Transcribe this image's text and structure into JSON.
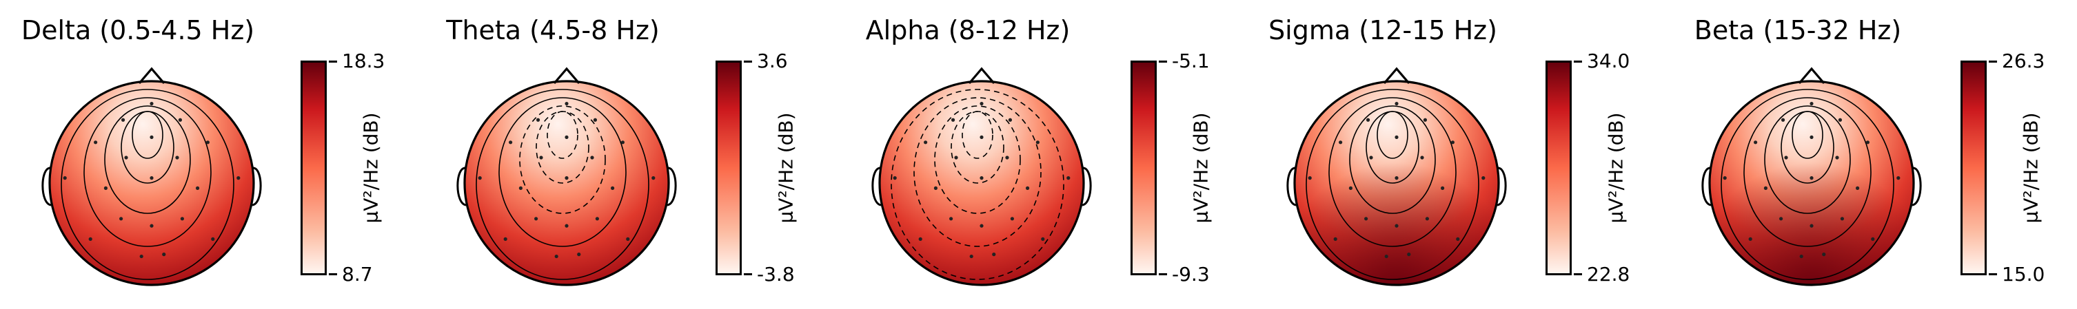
{
  "chart_data": [
    {
      "type": "heatmap",
      "subtype": "topomap",
      "title": "Delta (0.5-4.5 Hz)",
      "colorbar_label": "µV²/Hz (dB)",
      "colormap": "Reds",
      "vmin": 8.7,
      "vmax": 18.3,
      "vmin_label": "8.7",
      "vmax_label": "18.3",
      "low_region": "frontal-midline",
      "high_region": "occipital",
      "contour_style": "solid"
    },
    {
      "type": "heatmap",
      "subtype": "topomap",
      "title": "Theta (4.5-8 Hz)",
      "colorbar_label": "µV²/Hz (dB)",
      "colormap": "Reds",
      "vmin": -3.8,
      "vmax": 3.6,
      "vmin_label": "-3.8",
      "vmax_label": "3.6",
      "low_region": "frontal-midline",
      "high_region": "occipital",
      "contour_style": "dashed-center"
    },
    {
      "type": "heatmap",
      "subtype": "topomap",
      "title": "Alpha (8-12 Hz)",
      "colorbar_label": "µV²/Hz (dB)",
      "colormap": "Reds",
      "vmin": -9.3,
      "vmax": -5.1,
      "vmin_label": "-9.3",
      "vmax_label": "-5.1",
      "low_region": "frontal-midline",
      "high_region": "occipital",
      "contour_style": "dashed"
    },
    {
      "type": "heatmap",
      "subtype": "topomap",
      "title": "Sigma (12-15 Hz)",
      "colorbar_label": "µV²/Hz (dB)",
      "colormap": "Reds",
      "vmin": 22.8,
      "vmax": 34.0,
      "vmin_label": "22.8",
      "vmax_label": "34.0",
      "low_region": "frontal-midline",
      "high_region": "temporal-occipital",
      "contour_style": "solid"
    },
    {
      "type": "heatmap",
      "subtype": "topomap",
      "title": "Beta (15-32 Hz)",
      "colorbar_label": "µV²/Hz (dB)",
      "colormap": "Reds",
      "vmin": 15.0,
      "vmax": 26.3,
      "vmin_label": "15.0",
      "vmax_label": "26.3",
      "low_region": "frontal-midline",
      "high_region": "temporal-occipital",
      "contour_style": "solid"
    }
  ]
}
